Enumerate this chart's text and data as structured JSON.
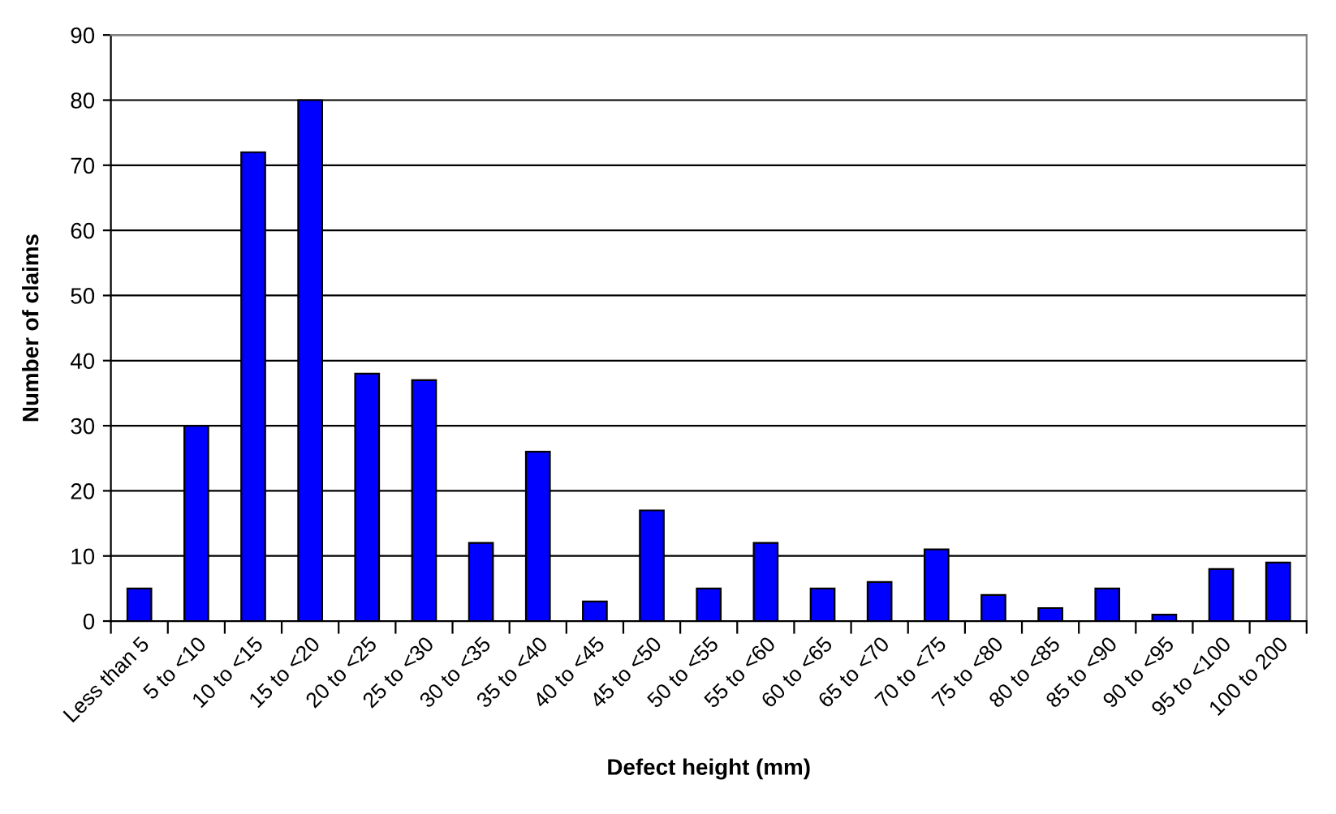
{
  "chart_data": {
    "type": "bar",
    "xlabel": "Defect height (mm)",
    "ylabel": "Number of claims",
    "categories": [
      "Less than 5",
      "5 to <10",
      "10 to <15",
      "15 to <20",
      "20 to <25",
      "25 to <30",
      "30 to <35",
      "35 to <40",
      "40 to <45",
      "45 to <50",
      "50 to <55",
      "55 to <60",
      "60 to <65",
      "65 to <70",
      "70 to <75",
      "75 to <80",
      "80 to <85",
      "85 to <90",
      "90 to <95",
      "95 to <100",
      "100 to 200"
    ],
    "values": [
      5,
      30,
      72,
      80,
      38,
      37,
      12,
      26,
      3,
      17,
      5,
      12,
      5,
      6,
      11,
      4,
      2,
      5,
      1,
      8,
      9
    ],
    "color": "#0000ff",
    "ylim": [
      0,
      90
    ],
    "yticks": [
      0,
      10,
      20,
      30,
      40,
      50,
      60,
      70,
      80,
      90
    ],
    "grid": "y",
    "legend": false
  }
}
